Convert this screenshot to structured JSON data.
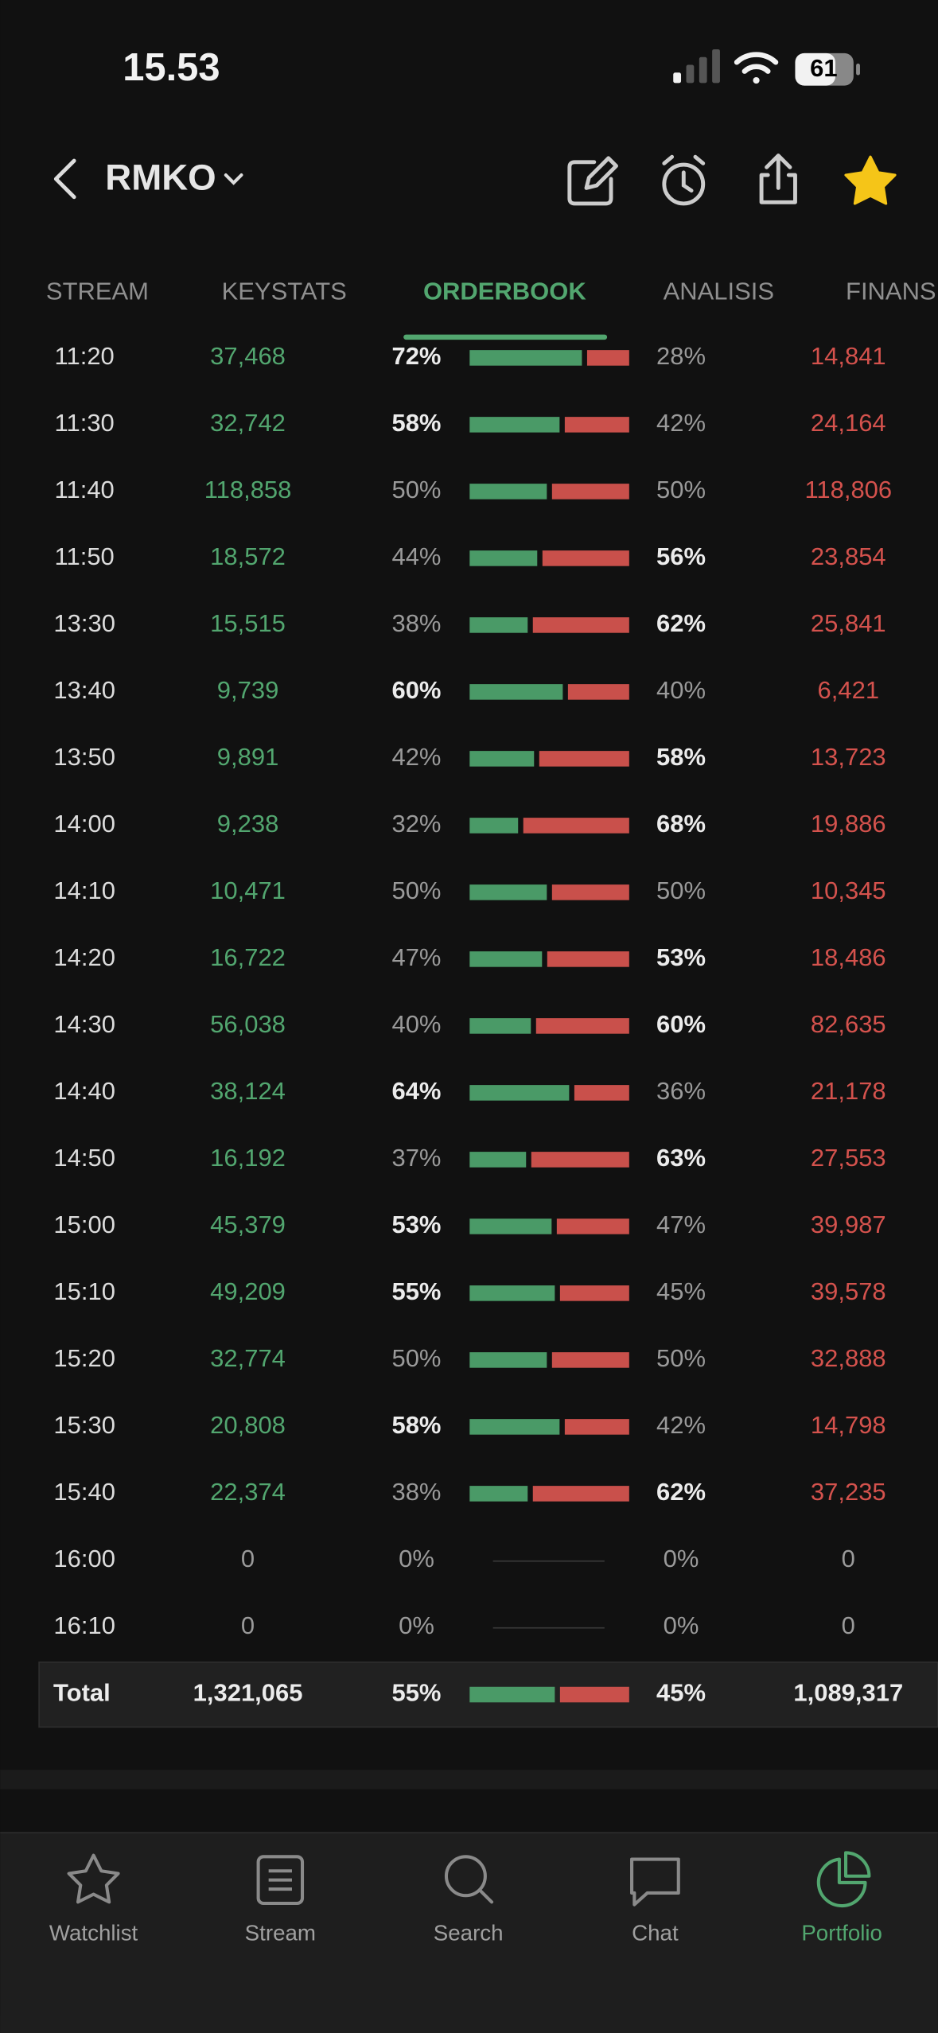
{
  "status_bar": {
    "time": "15.53",
    "battery": "61"
  },
  "header": {
    "ticker": "RMKO"
  },
  "tabs": [
    {
      "label": "STREAM"
    },
    {
      "label": "KEYSTATS"
    },
    {
      "label": "ORDERBOOK",
      "active": true
    },
    {
      "label": "ANALISIS"
    },
    {
      "label": "FINANS"
    }
  ],
  "table": {
    "rows": [
      [
        "11:20",
        "37,468",
        "72%",
        "28%",
        "14,841"
      ],
      [
        "11:30",
        "32,742",
        "58%",
        "42%",
        "24,164"
      ],
      [
        "11:40",
        "118,858",
        "50%",
        "50%",
        "118,806"
      ],
      [
        "11:50",
        "18,572",
        "44%",
        "56%",
        "23,854"
      ],
      [
        "13:30",
        "15,515",
        "38%",
        "62%",
        "25,841"
      ],
      [
        "13:40",
        "9,739",
        "60%",
        "40%",
        "6,421"
      ],
      [
        "13:50",
        "9,891",
        "42%",
        "58%",
        "13,723"
      ],
      [
        "14:00",
        "9,238",
        "32%",
        "68%",
        "19,886"
      ],
      [
        "14:10",
        "10,471",
        "50%",
        "50%",
        "10,345"
      ],
      [
        "14:20",
        "16,722",
        "47%",
        "53%",
        "18,486"
      ],
      [
        "14:30",
        "56,038",
        "40%",
        "60%",
        "82,635"
      ],
      [
        "14:40",
        "38,124",
        "64%",
        "36%",
        "21,178"
      ],
      [
        "14:50",
        "16,192",
        "37%",
        "63%",
        "27,553"
      ],
      [
        "15:00",
        "45,379",
        "53%",
        "47%",
        "39,987"
      ],
      [
        "15:10",
        "49,209",
        "55%",
        "45%",
        "39,578"
      ],
      [
        "15:20",
        "32,774",
        "50%",
        "50%",
        "32,888"
      ],
      [
        "15:30",
        "20,808",
        "58%",
        "42%",
        "14,798"
      ],
      [
        "15:40",
        "22,374",
        "38%",
        "62%",
        "37,235"
      ],
      [
        "16:00",
        "0",
        "0%",
        "0%",
        "0"
      ],
      [
        "16:10",
        "0",
        "0%",
        "0%",
        "0"
      ]
    ],
    "total": [
      "Total",
      "1,321,065",
      "55%",
      "45%",
      "1,089,317"
    ]
  },
  "nav": [
    {
      "label": "Watchlist"
    },
    {
      "label": "Stream"
    },
    {
      "label": "Search"
    },
    {
      "label": "Chat"
    },
    {
      "label": "Portfolio",
      "active": true
    }
  ]
}
